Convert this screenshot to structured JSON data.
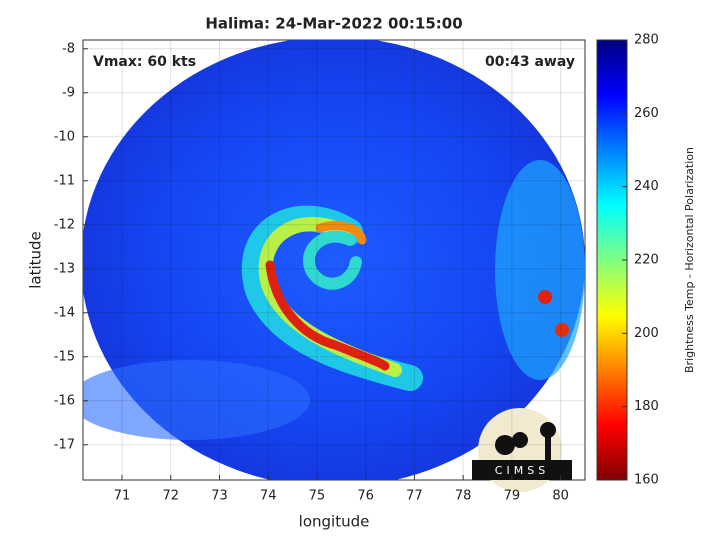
{
  "chart_data": {
    "type": "image",
    "title": "Halima: 24-Mar-2022 00:15:00",
    "annotations": [
      "Vmax: 60 kts",
      "00:43 away"
    ],
    "xlabel": "longitude",
    "ylabel": "latitude",
    "xlim": [
      70.2,
      80.5
    ],
    "xticks": [
      71,
      72,
      73,
      74,
      75,
      76,
      77,
      78,
      79,
      80
    ],
    "ylim": [
      -17.8,
      -7.8
    ],
    "yticks": [
      -17,
      -16,
      -15,
      -14,
      -13,
      -12,
      -11,
      -10,
      -9,
      -8
    ],
    "grid": true,
    "colorbar": {
      "label": "Brightness Temp - Horizontal Polarization",
      "clim": [
        160,
        280
      ],
      "ticks": [
        160,
        180,
        200,
        220,
        240,
        260,
        280
      ],
      "colormap": "jet"
    },
    "logo_text": "CIMSS"
  }
}
